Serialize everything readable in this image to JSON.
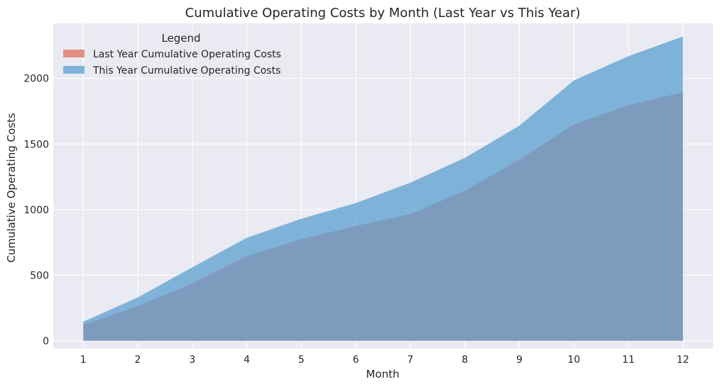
{
  "chart_data": {
    "type": "area",
    "title": "Cumulative Operating Costs by Month (Last Year vs This Year)",
    "xlabel": "Month",
    "ylabel": "Cumulative Operating Costs",
    "x": [
      1,
      2,
      3,
      4,
      5,
      6,
      7,
      8,
      9,
      10,
      11,
      12
    ],
    "xlim": [
      0.45,
      12.55
    ],
    "ylim": [
      -60,
      2420
    ],
    "yticks": [
      0,
      500,
      1000,
      1500,
      2000
    ],
    "grid": true,
    "stacked": false,
    "legend": {
      "title": "Legend",
      "placement": "top-left"
    },
    "series": [
      {
        "name": "Last Year Cumulative Operating Costs",
        "color": "#e07060",
        "values": [
          120,
          265,
          435,
          645,
          775,
          875,
          965,
          1145,
          1380,
          1650,
          1795,
          1895
        ]
      },
      {
        "name": "This Year Cumulative Operating Costs",
        "color": "#5b9fd0",
        "values": [
          145,
          330,
          560,
          785,
          930,
          1050,
          1205,
          1395,
          1640,
          1985,
          2170,
          2320
        ]
      }
    ]
  },
  "colors": {
    "plot_background": "#eaeaf2",
    "grid": "#ffffff"
  }
}
